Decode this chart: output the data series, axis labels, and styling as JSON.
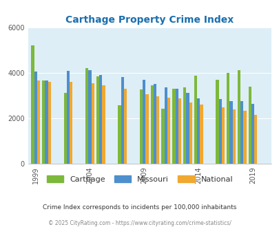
{
  "title": "Carthage Property Crime Index",
  "title_color": "#1a6faf",
  "subtitle": "Crime Index corresponds to incidents per 100,000 inhabitants",
  "footer": "© 2025 CityRating.com - https://www.cityrating.com/crime-statistics/",
  "years": [
    1999,
    2000,
    2001,
    2002,
    2003,
    2004,
    2005,
    2006,
    2007,
    2008,
    2009,
    2010,
    2011,
    2012,
    2013,
    2014,
    2015,
    2016,
    2017,
    2018,
    2019,
    2020
  ],
  "carthage": [
    5200,
    3650,
    null,
    3100,
    null,
    4200,
    3850,
    null,
    2550,
    null,
    3250,
    3450,
    2400,
    3300,
    3350,
    3880,
    null,
    3700,
    3980,
    4100,
    3380,
    null
  ],
  "missouri": [
    4050,
    3650,
    null,
    4080,
    null,
    4100,
    3900,
    null,
    3800,
    null,
    3700,
    3500,
    3350,
    3300,
    3100,
    2870,
    null,
    2850,
    2750,
    2750,
    2620,
    null
  ],
  "national": [
    3650,
    3600,
    null,
    3600,
    null,
    3520,
    3450,
    null,
    3300,
    null,
    3050,
    2970,
    2900,
    2870,
    2700,
    2580,
    null,
    2470,
    2380,
    2320,
    2130,
    null
  ],
  "bar_width": 0.27,
  "ylim": [
    0,
    6000
  ],
  "yticks": [
    0,
    2000,
    4000,
    6000
  ],
  "plot_bg": "#ddeef6",
  "bar_colors": {
    "carthage": "#7db83a",
    "missouri": "#4e8fcd",
    "national": "#f0a830"
  },
  "legend_labels": [
    "Carthage",
    "Missouri",
    "National"
  ],
  "xtick_years": [
    1999,
    2004,
    2009,
    2014,
    2019
  ]
}
